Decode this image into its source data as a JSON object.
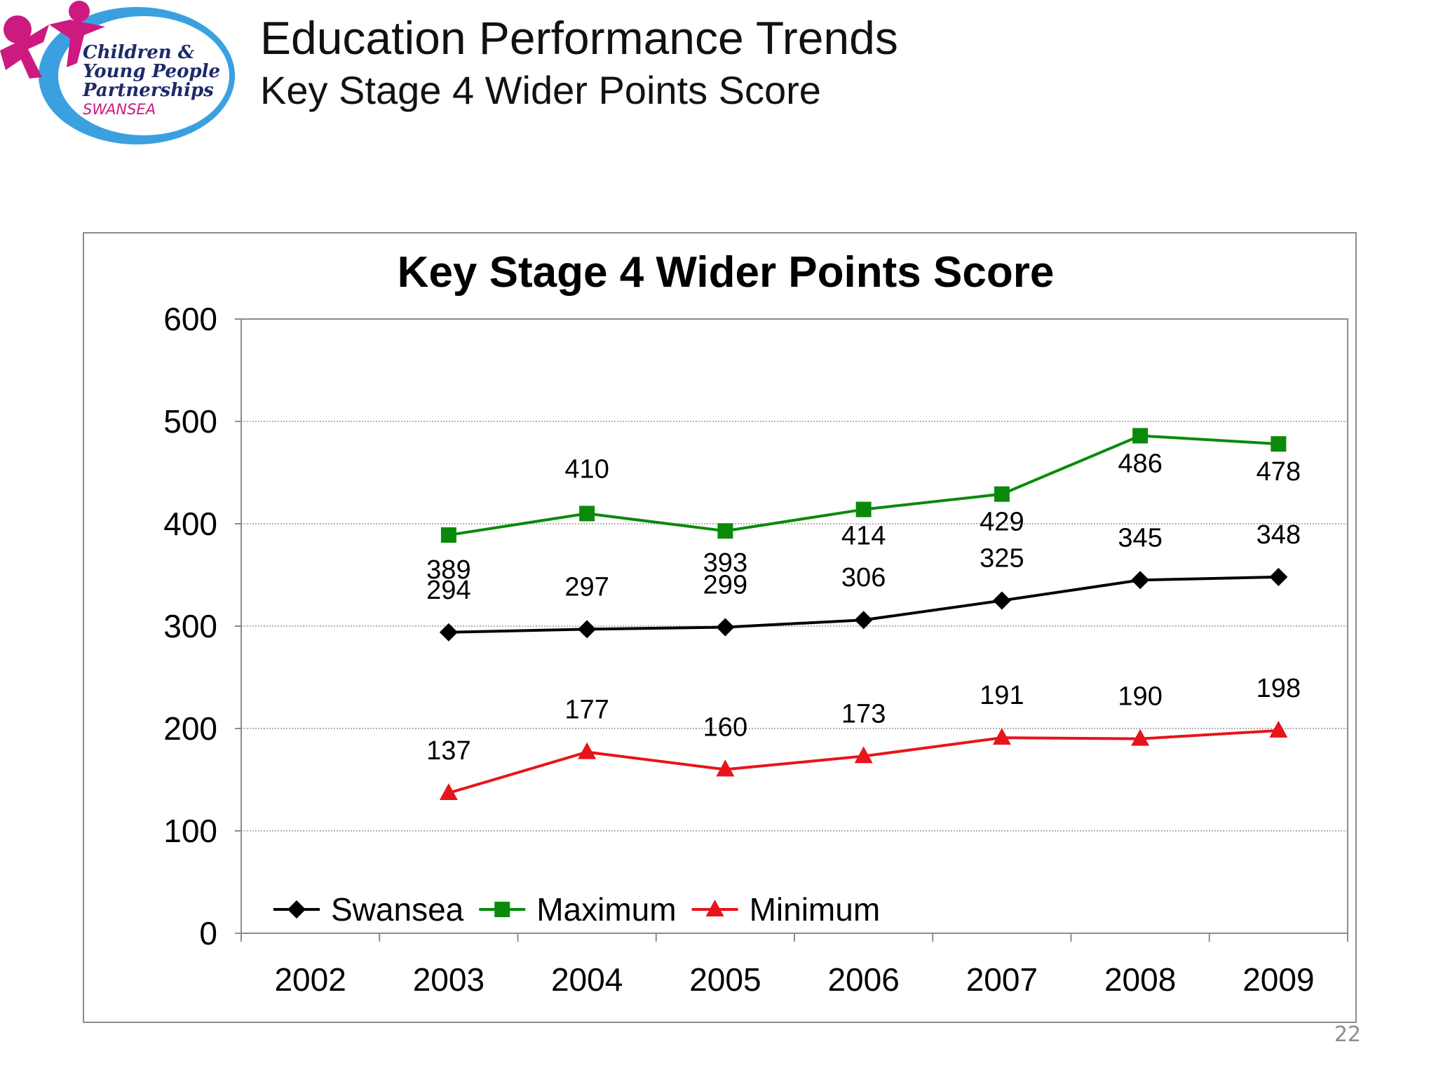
{
  "slide": {
    "title": "Education Performance Trends",
    "subtitle": "Key Stage 4 Wider Points Score",
    "page_number": "22"
  },
  "logo": {
    "line1": "Children &",
    "line2": "Young People",
    "line3": "Partnerships",
    "line4": "SWANSEA"
  },
  "colors": {
    "swansea": "#000000",
    "maximum": "#0a8a0a",
    "minimum": "#e8141b",
    "logo_blue": "#3aa0e0",
    "logo_magenta": "#cc1a80",
    "logo_navy": "#1d2a6b"
  },
  "chart_data": {
    "type": "line",
    "title": "Key Stage 4 Wider Points Score",
    "xlabel": "",
    "ylabel": "",
    "categories": [
      "2002",
      "2003",
      "2004",
      "2005",
      "2006",
      "2007",
      "2008",
      "2009"
    ],
    "ylim": [
      0,
      600
    ],
    "yticks": [
      0,
      100,
      200,
      300,
      400,
      500,
      600
    ],
    "grid": true,
    "legend_position": "bottom-left",
    "series": [
      {
        "name": "Swansea",
        "marker": "diamond",
        "color": "#000000",
        "values": [
          null,
          294,
          297,
          299,
          306,
          325,
          345,
          348
        ]
      },
      {
        "name": "Maximum",
        "marker": "square",
        "color": "#0a8a0a",
        "values": [
          null,
          389,
          410,
          393,
          414,
          429,
          486,
          478
        ]
      },
      {
        "name": "Minimum",
        "marker": "triangle",
        "color": "#e8141b",
        "values": [
          null,
          137,
          177,
          160,
          173,
          191,
          190,
          198
        ]
      }
    ]
  }
}
